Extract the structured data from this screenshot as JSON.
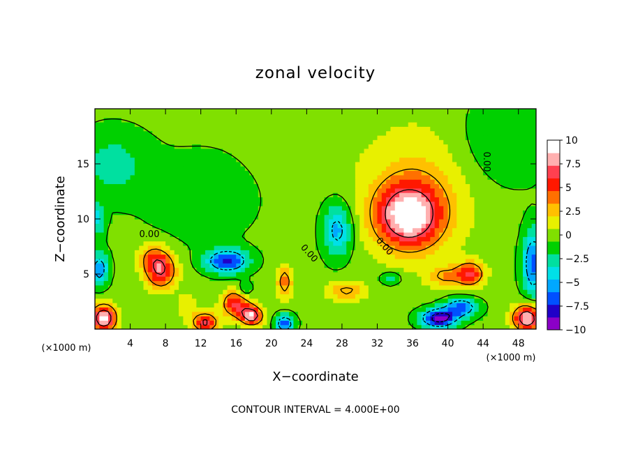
{
  "chart_data": {
    "type": "heatmap",
    "title": "zonal velocity",
    "xlabel": "X−coordinate",
    "ylabel": "Z−coordinate",
    "x_unit_left": "(×1000 m)",
    "x_unit_right": "(×1000 m)",
    "xlim": [
      0,
      50
    ],
    "ylim": [
      0,
      20
    ],
    "x_ticks": [
      "4",
      "8",
      "12",
      "16",
      "20",
      "24",
      "28",
      "32",
      "36",
      "40",
      "44",
      "48"
    ],
    "y_ticks": [
      "5",
      "10",
      "15"
    ],
    "x_tick_values": [
      4,
      8,
      12,
      16,
      20,
      24,
      28,
      32,
      36,
      40,
      44,
      48
    ],
    "y_tick_values": [
      5,
      10,
      15
    ],
    "colorbar": {
      "min": -10,
      "max": 10,
      "ticks": [
        "10",
        "7.5",
        "5",
        "2.5",
        "0",
        "−2.5",
        "−5",
        "−7.5",
        "−10"
      ],
      "tick_values": [
        10,
        7.5,
        5,
        2.5,
        0,
        -2.5,
        -5,
        -7.5,
        -10
      ],
      "colors": [
        "#8b00c8",
        "#2000c8",
        "#0050ff",
        "#00a8ff",
        "#00e0e8",
        "#00e0a0",
        "#00d000",
        "#80e000",
        "#e8f000",
        "#ffc000",
        "#ff7000",
        "#ff1800",
        "#ff4050",
        "#ffb0b0",
        "#ffffff"
      ]
    },
    "contour_labels": [
      "0.00",
      "0.00",
      "0.00",
      "0.00"
    ],
    "contour_interval_text": "CONTOUR INTERVAL = 4.000E+00",
    "features": [
      {
        "x": 35.5,
        "z": 10.3,
        "peak": 9.5,
        "sx": 3.6,
        "sz": 2.8
      },
      {
        "x": 36.5,
        "z": 12.5,
        "peak": 3.0,
        "sx": 6.5,
        "sz": 6.0
      },
      {
        "x": 7.5,
        "z": 5.3,
        "peak": 7.5,
        "sx": 1.7,
        "sz": 1.6
      },
      {
        "x": 6.5,
        "z": 6.5,
        "peak": 3.5,
        "sx": 1.6,
        "sz": 1.3
      },
      {
        "x": 15.0,
        "z": 6.2,
        "peak": -8.5,
        "sx": 2.3,
        "sz": 1.0
      },
      {
        "x": 27.5,
        "z": 9.0,
        "peak": -5.5,
        "sx": 1.6,
        "sz": 2.4
      },
      {
        "x": 42.5,
        "z": 5.0,
        "peak": 7.0,
        "sx": 1.6,
        "sz": 1.1
      },
      {
        "x": 39.5,
        "z": 4.8,
        "peak": 3.5,
        "sx": 1.8,
        "sz": 1.0
      },
      {
        "x": 16.0,
        "z": 2.3,
        "peak": 7.5,
        "sx": 1.6,
        "sz": 1.2
      },
      {
        "x": 17.8,
        "z": 1.2,
        "peak": 10.0,
        "sx": 1.2,
        "sz": 0.8
      },
      {
        "x": 1.0,
        "z": 1.0,
        "peak": 11.0,
        "sx": 1.4,
        "sz": 1.2
      },
      {
        "x": 49.0,
        "z": 1.0,
        "peak": 10.5,
        "sx": 1.6,
        "sz": 1.2
      },
      {
        "x": 12.5,
        "z": 0.6,
        "peak": 8.5,
        "sx": 1.3,
        "sz": 0.8
      },
      {
        "x": 39.0,
        "z": 1.0,
        "peak": -10.5,
        "sx": 2.0,
        "sz": 0.8
      },
      {
        "x": 41.5,
        "z": 2.0,
        "peak": -7.5,
        "sx": 1.8,
        "sz": 0.8
      },
      {
        "x": 21.5,
        "z": 0.5,
        "peak": -7.5,
        "sx": 1.0,
        "sz": 0.8
      },
      {
        "x": 0.5,
        "z": 5.5,
        "peak": -6.0,
        "sx": 1.0,
        "sz": 1.5
      },
      {
        "x": 0.3,
        "z": 10.0,
        "peak": -4.0,
        "sx": 0.8,
        "sz": 1.5
      },
      {
        "x": 49.7,
        "z": 6.0,
        "peak": -7.0,
        "sx": 1.2,
        "sz": 3.0
      },
      {
        "x": 28.5,
        "z": 3.5,
        "peak": 4.0,
        "sx": 2.2,
        "sz": 0.9
      },
      {
        "x": 21.5,
        "z": 4.3,
        "peak": 5.0,
        "sx": 0.9,
        "sz": 1.5
      },
      {
        "x": 17.0,
        "z": 3.5,
        "peak": -3.5,
        "sx": 0.8,
        "sz": 0.7
      },
      {
        "x": 33.5,
        "z": 4.6,
        "peak": -4.5,
        "sx": 1.0,
        "sz": 0.5
      },
      {
        "x": 10.5,
        "z": 2.0,
        "peak": 2.0,
        "sx": 1.2,
        "sz": 1.5
      },
      {
        "x": 2.0,
        "z": 15.0,
        "peak": -2.5,
        "sx": 4.0,
        "sz": 3.0
      },
      {
        "x": 12.0,
        "z": 12.0,
        "peak": -1.5,
        "sx": 6.0,
        "sz": 4.0
      },
      {
        "x": 46.0,
        "z": 17.0,
        "peak": -2.0,
        "sx": 5.0,
        "sz": 4.0
      },
      {
        "x": 24.0,
        "z": 17.0,
        "peak": 0.8,
        "sx": 5.0,
        "sz": 3.0
      }
    ]
  }
}
